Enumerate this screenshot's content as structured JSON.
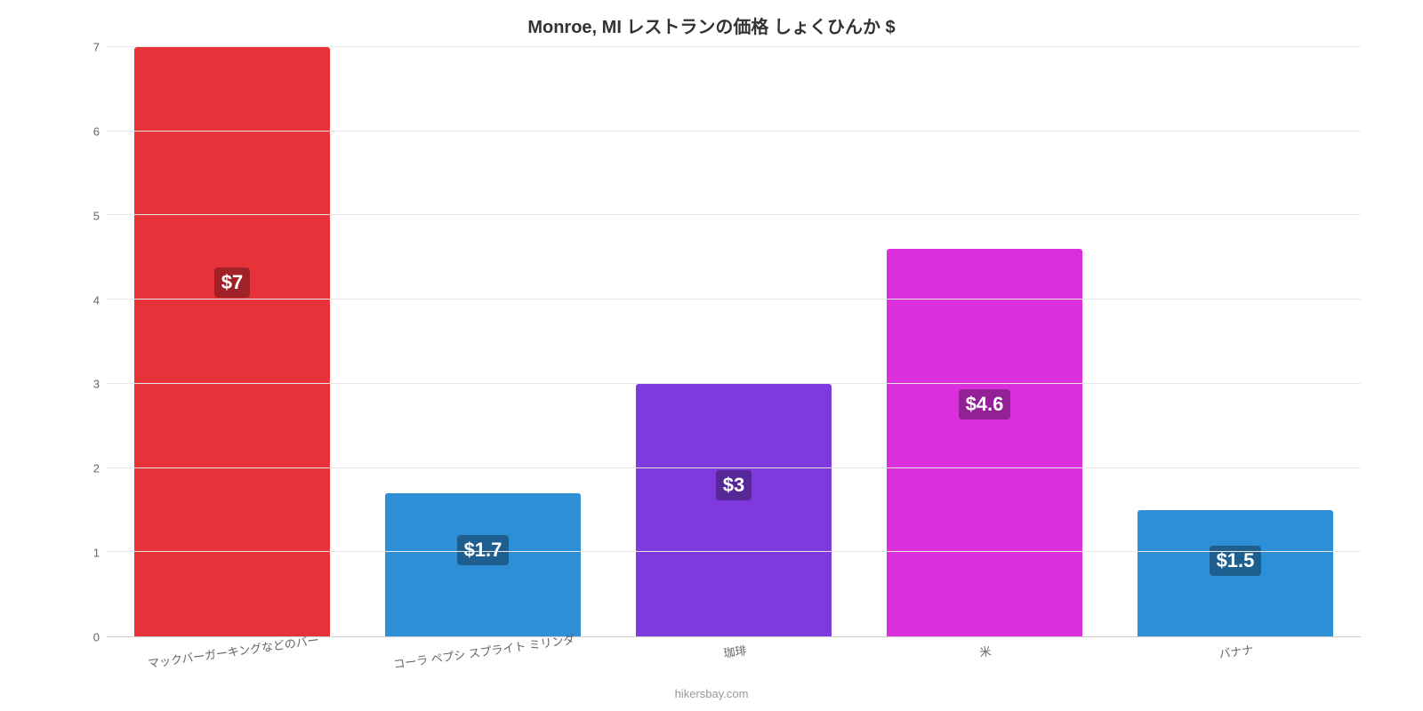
{
  "chart": {
    "type": "bar",
    "title": "Monroe, MI レストランの価格 しょくひんか $",
    "title_fontsize": 20,
    "title_color": "#333333",
    "background_color": "#ffffff",
    "grid_color": "#e6e6e6",
    "axis_line_color": "#cccccc",
    "axis_label_color": "#666666",
    "axis_label_fontsize": 13,
    "ylim_min": 0,
    "ylim_max": 7,
    "ytick_step": 1,
    "yticks": [
      0,
      1,
      2,
      3,
      4,
      5,
      6,
      7
    ],
    "bar_width_pct": 78,
    "x_label_rotate_deg": -8,
    "categories": [
      "マックバーガーキングなどのバー",
      "コーラ ペプシ スプライト ミリンダ",
      "珈琲",
      "米",
      "バナナ"
    ],
    "values": [
      7,
      1.7,
      3,
      4.6,
      1.5
    ],
    "value_labels": [
      "$7",
      "$1.7",
      "$3",
      "$4.6",
      "$1.5"
    ],
    "bar_colors": [
      "#e8323a",
      "#2d8fd6",
      "#8039dc",
      "#db2fdd",
      "#2d8fd6"
    ],
    "badge_colors": [
      "#a02228",
      "#1e5f8f",
      "#562796",
      "#932095",
      "#1e5f8f"
    ],
    "badge_fontsize": 22,
    "badge_text_color": "#ffffff",
    "credit": "hikersbay.com",
    "credit_color": "#999999",
    "credit_fontsize": 13
  }
}
